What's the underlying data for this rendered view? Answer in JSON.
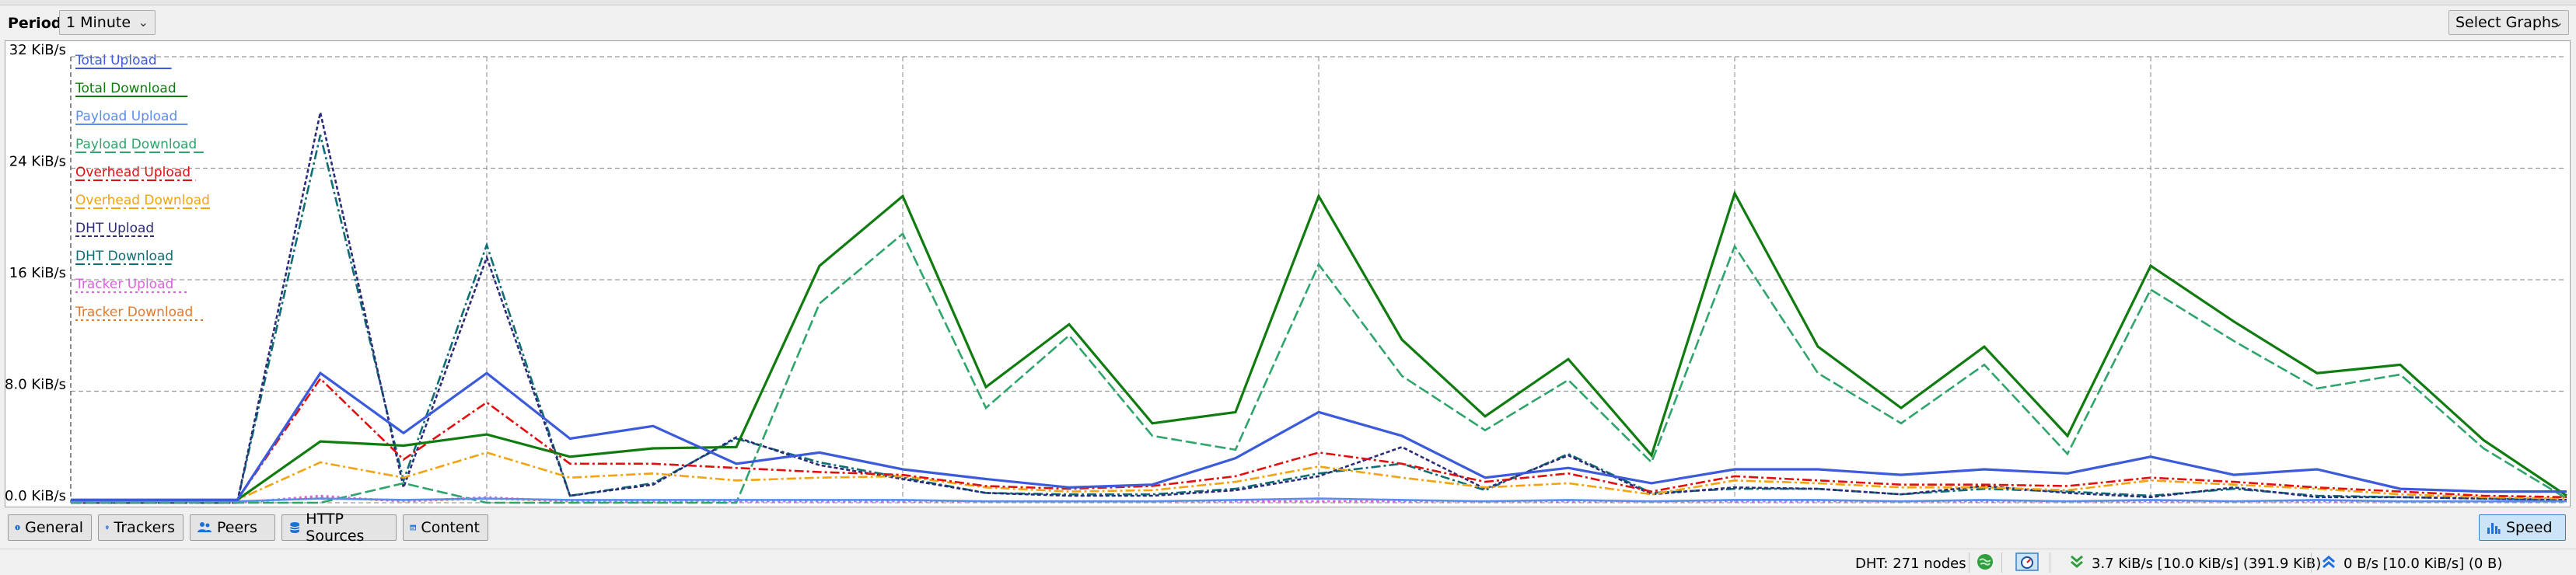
{
  "toolbar": {
    "period_label": "Period:",
    "period_value": "1 Minute",
    "select_graphs_label": "Select Graphs"
  },
  "graph": {
    "y_ticks": [
      "0.0 KiB/s",
      "8.0 KiB/s",
      "16 KiB/s",
      "24 KiB/s",
      "32 KiB/s"
    ]
  },
  "chart_data": {
    "type": "line",
    "ylim": [
      0,
      32
    ],
    "y_unit": "KiB/s",
    "grid": true,
    "legend_placement": "top-left",
    "x": [
      0,
      1,
      2,
      3,
      4,
      5,
      6,
      7,
      8,
      9,
      10,
      11,
      12,
      13,
      14,
      15,
      16,
      17,
      18,
      19,
      20,
      21,
      22,
      23,
      24,
      25,
      26,
      27,
      28,
      29,
      30
    ],
    "series": [
      {
        "name": "Total Upload",
        "color": "#3b5bdb",
        "dash": "solid",
        "values": [
          0.2,
          0.2,
          0.2,
          9.3,
          5.0,
          9.3,
          4.6,
          5.5,
          2.8,
          3.6,
          2.4,
          1.7,
          1.1,
          1.3,
          3.2,
          6.5,
          4.8,
          1.8,
          2.5,
          1.4,
          2.4,
          2.4,
          2.0,
          2.4,
          2.1,
          3.3,
          2.0,
          2.4,
          1.0,
          0.8,
          0.8
        ]
      },
      {
        "name": "Total Download",
        "color": "#107c10",
        "dash": "solid",
        "values": [
          0.2,
          0.2,
          0.2,
          4.4,
          4.1,
          4.9,
          3.3,
          3.9,
          4.0,
          17.0,
          22.0,
          8.3,
          12.8,
          5.7,
          6.5,
          22.0,
          11.7,
          6.2,
          10.3,
          3.4,
          22.2,
          11.2,
          6.8,
          11.2,
          4.8,
          17.0,
          13.0,
          9.3,
          9.9,
          4.5,
          0.5
        ]
      },
      {
        "name": "Payload Upload",
        "color": "#5b8def",
        "dash": "solid",
        "values": [
          0.1,
          0.1,
          0.1,
          0.3,
          0.2,
          0.3,
          0.2,
          0.2,
          0.2,
          0.2,
          0.2,
          0.1,
          0.1,
          0.1,
          0.2,
          0.3,
          0.2,
          0.1,
          0.2,
          0.1,
          0.2,
          0.2,
          0.1,
          0.2,
          0.1,
          0.2,
          0.1,
          0.2,
          0.1,
          0.1,
          0.1
        ]
      },
      {
        "name": "Payload Download",
        "color": "#2fa46b",
        "dash": "long-dash",
        "values": [
          0.0,
          0.0,
          0.0,
          0.0,
          1.4,
          0.0,
          0.0,
          0.0,
          0.0,
          14.3,
          19.3,
          6.8,
          12.0,
          4.8,
          3.8,
          17.1,
          9.1,
          5.2,
          8.8,
          2.9,
          18.4,
          9.3,
          5.7,
          9.9,
          3.5,
          15.3,
          11.6,
          8.2,
          9.2,
          3.9,
          0.3
        ]
      },
      {
        "name": "Overhead Upload",
        "color": "#e01010",
        "dash": "dash-dot",
        "values": [
          0.2,
          0.2,
          0.2,
          8.9,
          3.1,
          7.2,
          2.8,
          2.8,
          2.5,
          2.2,
          2.0,
          1.2,
          1.0,
          1.2,
          1.9,
          3.6,
          2.8,
          1.5,
          2.1,
          0.8,
          1.9,
          1.6,
          1.3,
          1.3,
          1.2,
          1.8,
          1.5,
          1.1,
          0.8,
          0.5,
          0.4
        ]
      },
      {
        "name": "Overhead Download",
        "color": "#f2a30f",
        "dash": "dash-dot",
        "values": [
          0.2,
          0.2,
          0.2,
          2.9,
          1.8,
          3.6,
          1.8,
          2.1,
          1.6,
          1.8,
          1.9,
          1.1,
          0.8,
          0.9,
          1.5,
          2.6,
          1.8,
          1.1,
          1.4,
          0.6,
          1.6,
          1.4,
          1.1,
          1.1,
          0.9,
          1.6,
          1.3,
          1.0,
          0.6,
          0.4,
          0.3
        ]
      },
      {
        "name": "DHT Upload",
        "color": "#2b2b7a",
        "dash": "dense-dash",
        "values": [
          0.0,
          0.0,
          0.0,
          28.0,
          1.1,
          17.6,
          0.5,
          1.3,
          4.7,
          2.7,
          1.7,
          0.7,
          0.5,
          0.5,
          0.9,
          1.9,
          4.0,
          1.0,
          3.4,
          0.6,
          1.1,
          1.0,
          0.6,
          1.2,
          0.7,
          0.4,
          1.1,
          0.4,
          0.4,
          0.3,
          0.2
        ]
      },
      {
        "name": "DHT Download",
        "color": "#0f6e72",
        "dash": "dash-dot",
        "values": [
          0.0,
          0.0,
          0.0,
          26.4,
          1.6,
          18.5,
          0.5,
          1.4,
          4.6,
          2.9,
          1.8,
          0.7,
          0.6,
          0.6,
          1.0,
          2.1,
          2.8,
          0.9,
          3.5,
          0.7,
          1.0,
          1.0,
          0.6,
          1.0,
          0.8,
          0.5,
          1.0,
          0.5,
          0.4,
          0.3,
          0.2
        ]
      },
      {
        "name": "Tracker Upload",
        "color": "#e060e0",
        "dash": "dotted",
        "values": [
          0.0,
          0.0,
          0.0,
          0.5,
          0.1,
          0.4,
          0.1,
          0.1,
          0.1,
          0.1,
          0.1,
          0.1,
          0.1,
          0.1,
          0.1,
          0.1,
          0.1,
          0.1,
          0.1,
          0.1,
          0.1,
          0.1,
          0.1,
          0.1,
          0.1,
          0.1,
          0.1,
          0.1,
          0.1,
          0.1,
          0.1
        ]
      },
      {
        "name": "Tracker Download",
        "color": "#e07a2e",
        "dash": "dotted",
        "values": [
          0.0,
          0.0,
          0.0,
          0.4,
          0.1,
          0.3,
          0.1,
          0.1,
          0.1,
          0.1,
          0.1,
          0.1,
          0.1,
          0.1,
          0.1,
          0.1,
          0.1,
          0.1,
          0.1,
          0.1,
          0.1,
          0.1,
          0.1,
          0.1,
          0.1,
          0.1,
          0.1,
          0.1,
          0.1,
          0.1,
          0.1
        ]
      }
    ]
  },
  "tabs": [
    {
      "label": "General",
      "icon": "info-icon"
    },
    {
      "label": "Trackers",
      "icon": "pin-icon"
    },
    {
      "label": "Peers",
      "icon": "people-icon"
    },
    {
      "label": "HTTP Sources",
      "icon": "database-icon"
    },
    {
      "label": "Content",
      "icon": "folder-icon"
    }
  ],
  "speed_tab": {
    "label": "Speed",
    "icon": "bar-chart-icon"
  },
  "statusbar": {
    "dht": "DHT: 271 nodes",
    "download": "3.7 KiB/s [10.0 KiB/s] (391.9 KiB)",
    "upload": "0 B/s [10.0 KiB/s] (0 B)"
  }
}
